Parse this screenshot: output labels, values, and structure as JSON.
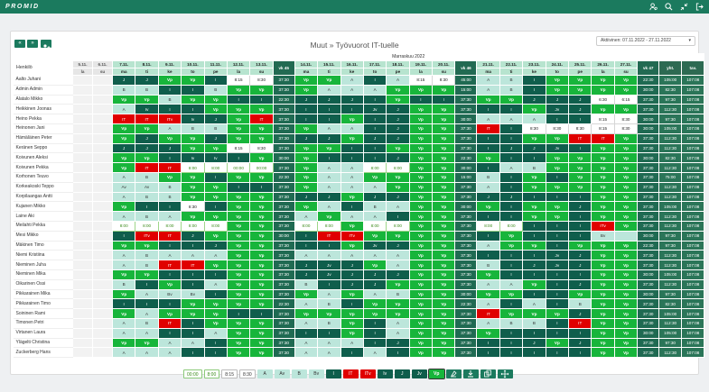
{
  "app": {
    "logo": "PROMID"
  },
  "header": {
    "icons": [
      "user-settings-icon",
      "search-icon",
      "collapse-icon",
      "logout-icon"
    ]
  },
  "nav": {
    "prev": "«",
    "next": "»"
  },
  "page": {
    "title": "Muut » Työvuorot IT-tuelle",
    "period": "Aktiivinen: 07.11.2022 - 27.11.2022",
    "month": "Marraskuu 2022",
    "name_header": "Henkilö"
  },
  "columns": [
    {
      "date": "5.11.",
      "day": "la",
      "type": "pre"
    },
    {
      "date": "6.11.",
      "day": "su",
      "type": "pre"
    },
    {
      "date": "7.11.",
      "day": "ma",
      "type": "d"
    },
    {
      "date": "8.11.",
      "day": "ti",
      "type": "d"
    },
    {
      "date": "9.11.",
      "day": "ke",
      "type": "d"
    },
    {
      "date": "10.11.",
      "day": "to",
      "type": "d"
    },
    {
      "date": "11.11.",
      "day": "pe",
      "type": "d"
    },
    {
      "date": "12.11.",
      "day": "la",
      "type": "w"
    },
    {
      "date": "13.11.",
      "day": "su",
      "type": "w"
    },
    {
      "date": "vk 45",
      "day": "",
      "type": "wk"
    },
    {
      "date": "14.11.",
      "day": "ma",
      "type": "d"
    },
    {
      "date": "15.11.",
      "day": "ti",
      "type": "d"
    },
    {
      "date": "16.11.",
      "day": "ke",
      "type": "d"
    },
    {
      "date": "17.11.",
      "day": "to",
      "type": "d"
    },
    {
      "date": "18.11.",
      "day": "pe",
      "type": "d"
    },
    {
      "date": "19.11.",
      "day": "la",
      "type": "w"
    },
    {
      "date": "20.11.",
      "day": "su",
      "type": "w"
    },
    {
      "date": "vk 46",
      "day": "",
      "type": "wk"
    },
    {
      "date": "21.11.",
      "day": "ma",
      "type": "d"
    },
    {
      "date": "22.11.",
      "day": "ti",
      "type": "d"
    },
    {
      "date": "23.11.",
      "day": "ke",
      "type": "d"
    },
    {
      "date": "24.11.",
      "day": "to",
      "type": "d"
    },
    {
      "date": "25.11.",
      "day": "pe",
      "type": "d"
    },
    {
      "date": "26.11.",
      "day": "la",
      "type": "w"
    },
    {
      "date": "27.11.",
      "day": "su",
      "type": "w"
    },
    {
      "date": "vk 47",
      "day": "",
      "type": "wk"
    },
    {
      "date": "yht.",
      "day": "",
      "type": "sum"
    },
    {
      "date": "tav.",
      "day": "",
      "type": "sum"
    }
  ],
  "rows": [
    {
      "name": "Aalto Juhani",
      "cells": [
        "",
        "",
        "J",
        "J",
        "Vp",
        "Vp",
        "I",
        "8:15",
        "8:30",
        "37:30",
        "Vp",
        "Vp",
        "A",
        "I",
        "A",
        "8:15",
        "8:30",
        "45:00",
        "A",
        "B",
        "I",
        "Vp",
        "Vp",
        "Vp",
        "Vp",
        "22:30",
        "105:00",
        "107:08"
      ]
    },
    {
      "name": "Admin Admin",
      "cells": [
        "",
        "",
        "B",
        "B",
        "I",
        "I",
        "B",
        "Vp",
        "Vp",
        "37:30",
        "Vp",
        "A",
        "A",
        "A",
        "Vp",
        "Vp",
        "Vp",
        "15:00",
        "A",
        "B",
        "I",
        "Vp",
        "Vp",
        "Vp",
        "Vp",
        "30:00",
        "82:30",
        "107:08"
      ]
    },
    {
      "name": "Alatalo Mikko",
      "cells": [
        "",
        "",
        "Vp",
        "Vp",
        "B",
        "Vp",
        "Vp",
        "I",
        "I",
        "22:30",
        "J",
        "J",
        "J",
        "I",
        "Vp",
        "I",
        "I",
        "37:30",
        "Vp",
        "Vp",
        "J",
        "J",
        "J",
        "6:30",
        "6:15",
        "37:30",
        "97:30",
        "107:08"
      ]
    },
    {
      "name": "Heikkinen Joonas",
      "cells": [
        "",
        "",
        "A",
        "Iv",
        "I",
        "I",
        "Vp",
        "Vp",
        "Vp",
        "37:30",
        "I",
        "I",
        "I",
        "Jv",
        "J",
        "Vp",
        "Vp",
        "37:30",
        "I",
        "I",
        "Vp",
        "Jv",
        "J",
        "Vp",
        "Vp",
        "37:30",
        "112:30",
        "107:08"
      ]
    },
    {
      "name": "Heino Pekka",
      "cells": [
        "",
        "",
        "IT",
        "IT",
        "ITv",
        "Iv",
        "J",
        "Vp",
        "IT",
        "37:30",
        "I",
        "I",
        "Vp",
        "I",
        "J",
        "Vp",
        "Vp",
        "30:00",
        "A",
        "A",
        "A",
        "I",
        "I",
        "8:15",
        "8:30",
        "30:00",
        "97:30",
        "107:08"
      ]
    },
    {
      "name": "Heinonen Jani",
      "cells": [
        "",
        "",
        "Vp",
        "Vp",
        "A",
        "B",
        "B",
        "Vp",
        "Vp",
        "37:30",
        "Vp",
        "A",
        "A",
        "I",
        "J",
        "Vp",
        "Vp",
        "37:30",
        "IT",
        "I",
        "8:30",
        "8:30",
        "8:30",
        "8:15",
        "8:30",
        "30:00",
        "105:00",
        "107:08"
      ]
    },
    {
      "name": "Hämäläinen Peter",
      "cells": [
        "",
        "",
        "Vp",
        "J",
        "Vp",
        "Vp",
        "J",
        "Vp",
        "Vp",
        "37:30",
        "J",
        "J",
        "Vp",
        "J",
        "J",
        "Vp",
        "Vp",
        "37:30",
        "I",
        "I",
        "Vp",
        "Vp",
        "IT",
        "IT",
        "Vp",
        "37:30",
        "112:30",
        "107:08"
      ]
    },
    {
      "name": "Keränen Seppo",
      "cells": [
        "",
        "",
        "J",
        "J",
        "J",
        "Vp",
        "Vp",
        "8:15",
        "8:30",
        "37:30",
        "Vp",
        "Vp",
        "I",
        "I",
        "Vp",
        "Vp",
        "Vp",
        "37:30",
        "I",
        "J",
        "J",
        "Jv",
        "I",
        "Vp",
        "Vp",
        "37:30",
        "112:30",
        "107:08"
      ]
    },
    {
      "name": "Koivunen Aleksi",
      "cells": [
        "",
        "",
        "Vp",
        "Vp",
        "I",
        "Iv",
        "Iv",
        "I",
        "Vp",
        "30:00",
        "Vp",
        "I",
        "I",
        "I",
        "J",
        "Vp",
        "Vp",
        "22:30",
        "Vp",
        "I",
        "I",
        "Vp",
        "Vp",
        "Vp",
        "Vp",
        "30:00",
        "82:30",
        "107:08"
      ]
    },
    {
      "name": "Koivunen Pekka",
      "cells": [
        "",
        "",
        "Vp",
        "IT",
        "IT",
        "8:00",
        "8:00",
        "00:00",
        "00:00",
        "37:30",
        "Vp",
        "A",
        "A",
        "8:00",
        "8:00",
        "Vp",
        "Vp",
        "30:00",
        "I",
        "A",
        "B",
        "Vp",
        "Vp",
        "Vp",
        "Vp",
        "37:30",
        "112:30",
        "107:08"
      ]
    },
    {
      "name": "Korhonen Teuvo",
      "cells": [
        "",
        "",
        "A",
        "B",
        "Vp",
        "Vp",
        "I",
        "Vp",
        "Vp",
        "22:30",
        "Vp",
        "A",
        "A",
        "Vp",
        "Vp",
        "Vp",
        "Vp",
        "15:00",
        "B",
        "I",
        "Vp",
        "I",
        "Vp",
        "Vp",
        "Vp",
        "37:30",
        "75:00",
        "107:08"
      ]
    },
    {
      "name": "Korkeakoski Teppo",
      "cells": [
        "",
        "",
        "Av",
        "Av",
        "B",
        "Vp",
        "Vp",
        "I",
        "I",
        "37:30",
        "Vp",
        "A",
        "A",
        "A",
        "Vp",
        "Vp",
        "Vp",
        "37:30",
        "A",
        "I",
        "Vp",
        "Vp",
        "Vp",
        "Vp",
        "Vp",
        "37:30",
        "112:30",
        "107:08"
      ]
    },
    {
      "name": "Korpilaangas Antti",
      "cells": [
        "",
        "",
        "A",
        "B",
        "B",
        "Vp",
        "Vp",
        "Vp",
        "Vp",
        "37:30",
        "J",
        "J",
        "Vp",
        "J",
        "J",
        "Vp",
        "Vp",
        "37:30",
        "J",
        "J",
        "I",
        "I",
        "I",
        "Vp",
        "Vp",
        "37:30",
        "112:30",
        "107:08"
      ]
    },
    {
      "name": "Kujanen Mikko",
      "cells": [
        "",
        "",
        "Vp",
        "I",
        "I",
        "8:30",
        "I",
        "Vp",
        "Vp",
        "37:30",
        "Vp",
        "A",
        "I",
        "B",
        "A",
        "Vp",
        "Vp",
        "30:00",
        "Vp",
        "I",
        "Vp",
        "Vp",
        "J",
        "Vp",
        "Vp",
        "37:30",
        "105:00",
        "107:08"
      ]
    },
    {
      "name": "Laine Aki",
      "cells": [
        "",
        "",
        "A",
        "B",
        "A",
        "Vp",
        "Vp",
        "Vp",
        "Vp",
        "37:30",
        "A",
        "Vp",
        "A",
        "A",
        "I",
        "Vp",
        "Vp",
        "37:30",
        "I",
        "I",
        "Vp",
        "Vp",
        "I",
        "Vp",
        "Vp",
        "37:30",
        "112:30",
        "107:08"
      ]
    },
    {
      "name": "Meilahti Pekka",
      "cells": [
        "",
        "",
        "8:00",
        "8:00",
        "8:00",
        "8:00",
        "8:00",
        "Vp",
        "Vp",
        "37:30",
        "8:00",
        "8:00",
        "Vp",
        "8:00",
        "8:00",
        "Vp",
        "Vp",
        "37:30",
        "8:00",
        "8:00",
        "I",
        "I",
        "I",
        "ITv",
        "Vp",
        "37:30",
        "112:30",
        "107:08"
      ]
    },
    {
      "name": "Mesi Mikko",
      "cells": [
        "",
        "",
        "I",
        "ITv",
        "IT",
        "J",
        "Vp",
        "Vp",
        "Vp",
        "30:00",
        "I",
        "IT",
        "ITv",
        "Vp",
        "Vp",
        "Vp",
        "Vp",
        "37:30",
        "I",
        "Vp",
        "I",
        "I",
        "I",
        "Bv",
        "",
        "30:00",
        "97:30",
        "107:08"
      ]
    },
    {
      "name": "Mäkinen Timo",
      "cells": [
        "",
        "",
        "Vp",
        "Vp",
        "I",
        "I",
        "J",
        "Vp",
        "Vp",
        "37:30",
        "I",
        "I",
        "Vp",
        "Jv",
        "J",
        "Vp",
        "Vp",
        "37:30",
        "A",
        "Vp",
        "Vp",
        "I",
        "Vp",
        "Vp",
        "Vp",
        "22:30",
        "97:30",
        "107:08"
      ]
    },
    {
      "name": "Niemi Kristiina",
      "cells": [
        "",
        "",
        "A",
        "B",
        "A",
        "A",
        "A",
        "Vp",
        "Vp",
        "37:30",
        "A",
        "A",
        "A",
        "A",
        "A",
        "Vp",
        "Vp",
        "37:30",
        "I",
        "I",
        "I",
        "Jv",
        "J",
        "Vp",
        "Vp",
        "37:30",
        "112:30",
        "107:08"
      ]
    },
    {
      "name": "Nieminen Juha",
      "cells": [
        "",
        "",
        "A",
        "B",
        "IT",
        "IT",
        "Vp",
        "Vp",
        "Vp",
        "37:30",
        "J",
        "Jv",
        "J",
        "Vp",
        "A",
        "Vp",
        "Vp",
        "37:30",
        "B",
        "I",
        "J",
        "Jv",
        "J",
        "Vp",
        "Vp",
        "37:30",
        "112:30",
        "107:08"
      ]
    },
    {
      "name": "Nieminen Mika",
      "cells": [
        "",
        "",
        "Vp",
        "Vp",
        "I",
        "I",
        "I",
        "Vp",
        "Vp",
        "37:30",
        "J",
        "Jv",
        "J",
        "J",
        "J",
        "Vp",
        "Vp",
        "37:30",
        "Vp",
        "I",
        "I",
        "I",
        "I",
        "Vp",
        "Vp",
        "30:00",
        "105:00",
        "107:08"
      ]
    },
    {
      "name": "Oikarinen Ossi",
      "cells": [
        "",
        "",
        "B",
        "I",
        "Vp",
        "I",
        "A",
        "Vp",
        "Vp",
        "37:30",
        "B",
        "I",
        "J",
        "J",
        "Vp",
        "Vp",
        "Vp",
        "37:30",
        "A",
        "A",
        "Vp",
        "I",
        "J",
        "Vp",
        "Vp",
        "37:30",
        "112:30",
        "107:08"
      ]
    },
    {
      "name": "Pikkarainen Mika",
      "cells": [
        "",
        "",
        "Vp",
        "A",
        "Bv",
        "Bv",
        "I",
        "Vp",
        "Vp",
        "37:30",
        "Vp",
        "A",
        "Vp",
        "A",
        "B",
        "Vp",
        "Vp",
        "30:00",
        "Vp",
        "Vp",
        "I",
        "I",
        "Vp",
        "Vp",
        "Vp",
        "30:00",
        "97:30",
        "107:08"
      ]
    },
    {
      "name": "Pikkarainen Timo",
      "cells": [
        "",
        "",
        "I",
        "I",
        "I",
        "Vp",
        "Vp",
        "Vp",
        "Vp",
        "22:30",
        "A",
        "B",
        "I",
        "Vp",
        "Vp",
        "Vp",
        "Vp",
        "22:30",
        "A",
        "I",
        "A",
        "I",
        "B",
        "Vp",
        "Vp",
        "37:30",
        "82:30",
        "107:08"
      ]
    },
    {
      "name": "Soininen Rami",
      "cells": [
        "",
        "",
        "Vp",
        "A",
        "Vp",
        "Vp",
        "Vp",
        "I",
        "I",
        "37:30",
        "Vp",
        "Vp",
        "Vp",
        "Vp",
        "Vp",
        "Vp",
        "Vp",
        "37:30",
        "IT",
        "Vp",
        "Vp",
        "Vp",
        "J",
        "Vp",
        "Vp",
        "37:30",
        "105:00",
        "107:08"
      ]
    },
    {
      "name": "Timonen Petri",
      "cells": [
        "",
        "",
        "A",
        "B",
        "IT",
        "I",
        "Vp",
        "Vp",
        "Vp",
        "37:30",
        "A",
        "B",
        "Vp",
        "I",
        "A",
        "Vp",
        "Vp",
        "37:30",
        "A",
        "B",
        "B",
        "I",
        "IT",
        "Vp",
        "Vp",
        "37:30",
        "112:30",
        "107:08"
      ]
    },
    {
      "name": "Virtanen Laura",
      "cells": [
        "",
        "",
        "A",
        "A",
        "I",
        "I",
        "A",
        "Vp",
        "Vp",
        "37:30",
        "I",
        "I",
        "Vp",
        "I",
        "A",
        "Vp",
        "Vp",
        "37:30",
        "Vp",
        "I",
        "I",
        "I",
        "I",
        "Vp",
        "Vp",
        "30:00",
        "105:00",
        "107:08"
      ]
    },
    {
      "name": "Ylägelti Christina",
      "cells": [
        "",
        "",
        "Vp",
        "Vp",
        "A",
        "A",
        "I",
        "Vp",
        "Vp",
        "37:30",
        "A",
        "A",
        "A",
        "I",
        "J",
        "Vp",
        "Vp",
        "37:30",
        "I",
        "I",
        "J",
        "Vp",
        "J",
        "Vp",
        "Vp",
        "37:30",
        "97:30",
        "107:08"
      ]
    },
    {
      "name": "Zuckerberg Hans",
      "cells": [
        "",
        "",
        "A",
        "A",
        "A",
        "I",
        "I",
        "Vp",
        "Vp",
        "37:30",
        "A",
        "A",
        "I",
        "A",
        "I",
        "Vp",
        "Vp",
        "37:30",
        "I",
        "I",
        "I",
        "I",
        "I",
        "Vp",
        "Vp",
        "37:30",
        "112:30",
        "107:08"
      ]
    }
  ],
  "legend": [
    {
      "label": "00:00",
      "kind": "o"
    },
    {
      "label": "8:00",
      "kind": "o"
    },
    {
      "label": "8:15",
      "kind": "t"
    },
    {
      "label": "8:30",
      "kind": "t"
    },
    {
      "label": "A",
      "kind": "A"
    },
    {
      "label": "Av",
      "kind": "Av"
    },
    {
      "label": "B",
      "kind": "B"
    },
    {
      "label": "Bv",
      "kind": "Bv"
    },
    {
      "label": "I",
      "kind": "I"
    },
    {
      "label": "IT",
      "kind": "IT"
    },
    {
      "label": "ITv",
      "kind": "ITv"
    },
    {
      "label": "Iv",
      "kind": "Iv"
    },
    {
      "label": "J",
      "kind": "J"
    },
    {
      "label": "Jv",
      "kind": "Jv"
    },
    {
      "label": "Vp",
      "kind": "Vp"
    }
  ],
  "legend_tools": [
    "clear-icon",
    "download-icon",
    "copy-icon",
    "move-icon"
  ],
  "colors": {
    "brand": "#1b7a5e",
    "vp": "#17b53b",
    "it": "#e00000",
    "dark": "#0f5e4c",
    "light": "#bce6db"
  }
}
